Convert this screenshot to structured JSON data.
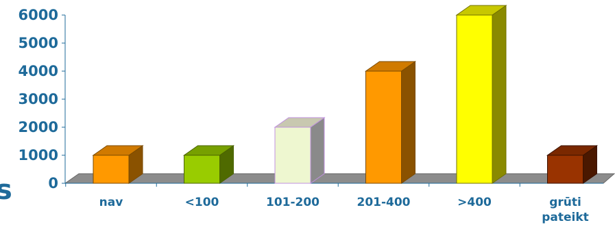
{
  "chart_data": {
    "type": "bar",
    "categories": [
      "nav",
      "<100",
      "101-200",
      "201-400",
      ">400",
      "grūti pateikt"
    ],
    "category_label_lines": [
      [
        "nav"
      ],
      [
        "<100"
      ],
      [
        "101-200"
      ],
      [
        "201-400"
      ],
      [
        ">400"
      ],
      [
        "grūti",
        "pateikt"
      ]
    ],
    "values": [
      1000,
      1000,
      2000,
      4000,
      6000,
      1000
    ],
    "ylim": [
      0,
      6000
    ],
    "yticks": [
      0,
      1000,
      2000,
      3000,
      4000,
      5000,
      6000
    ],
    "title": "",
    "xlabel": "",
    "ylabel": "",
    "legend": "none",
    "grid": false,
    "colors": [
      {
        "front": "#ff9900",
        "top": "#d07a00",
        "side": "#8a5200",
        "stroke": "#7a4a00"
      },
      {
        "front": "#99cc00",
        "top": "#77a000",
        "side": "#4f6a00",
        "stroke": "#4a6200"
      },
      {
        "front": "#eef7d0",
        "top": "#c8c8b0",
        "side": "#8a8a8a",
        "stroke": "#c090e0"
      },
      {
        "front": "#ff9900",
        "top": "#d07a00",
        "side": "#8a5200",
        "stroke": "#7a4a00"
      },
      {
        "front": "#ffff00",
        "top": "#c8c800",
        "side": "#8a8a00",
        "stroke": "#707000"
      },
      {
        "front": "#993300",
        "top": "#7a2800",
        "side": "#4a1800",
        "stroke": "#3a1200"
      }
    ],
    "axis_color": "#1e6a9a",
    "floor_color": "#8c8c8c"
  },
  "stray_text": "s"
}
